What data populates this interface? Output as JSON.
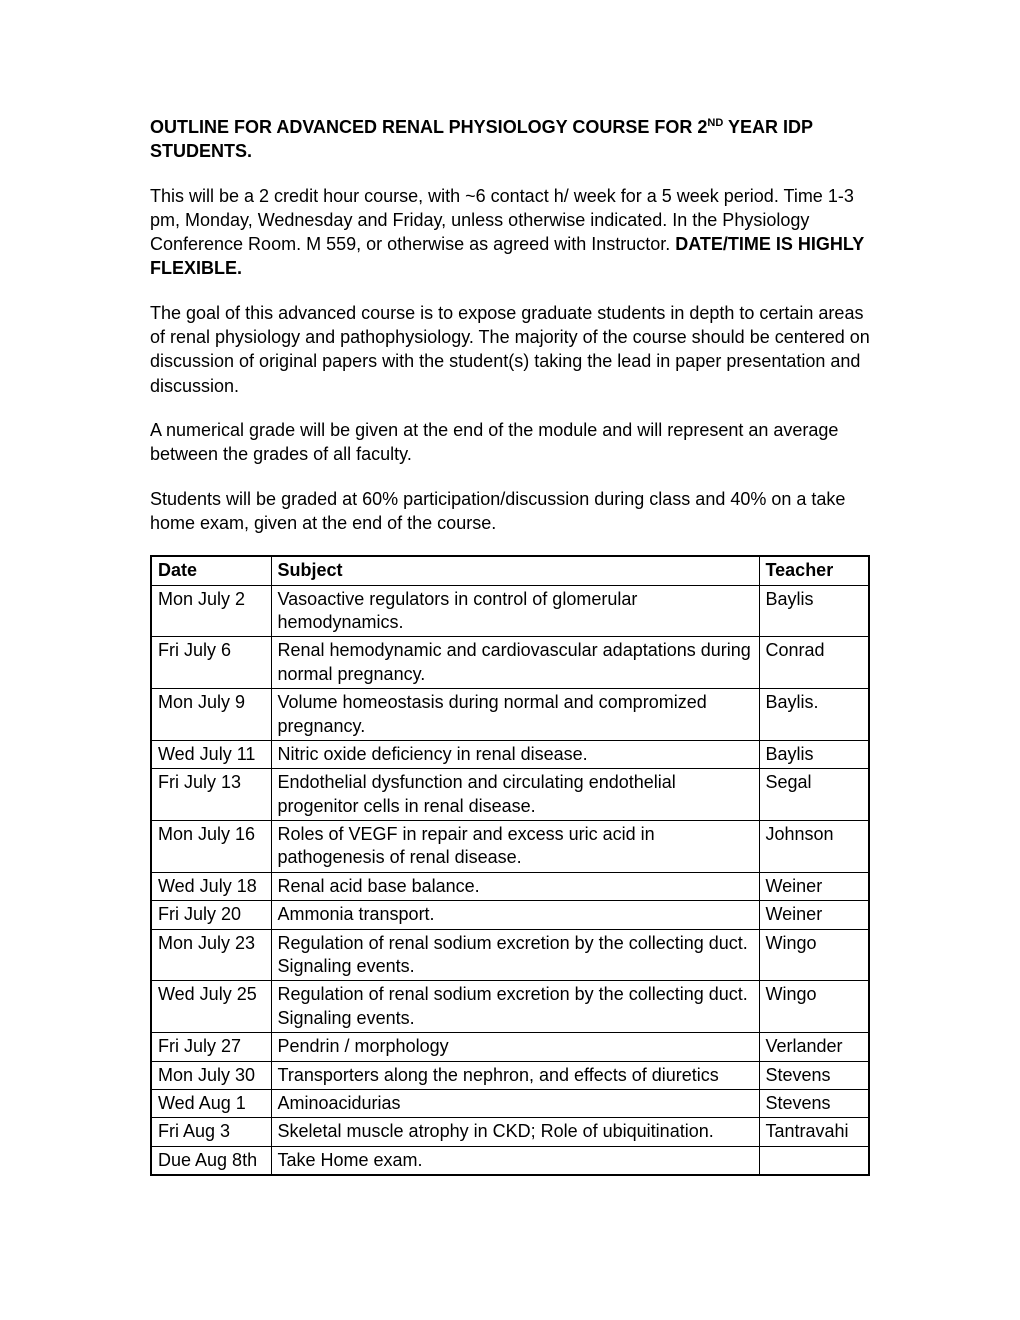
{
  "title": {
    "pre": "OUTLINE FOR ADVANCED RENAL PHYSIOLOGY COURSE FOR 2",
    "sup": "ND",
    "post": " YEAR IDP STUDENTS."
  },
  "para1": {
    "plain": "This will be a 2 credit hour course, with ~6 contact h/ week for a 5 week period. Time 1-3 pm, Monday, Wednesday and Friday, unless otherwise indicated.  In the Physiology Conference Room.  M 559, or otherwise as agreed with Instructor.  ",
    "bold": "DATE/TIME IS HIGHLY FLEXIBLE."
  },
  "para2": "The goal of this advanced course is to expose graduate students in depth to certain areas of renal physiology and pathophysiology.  The majority of the course should be centered on discussion of original papers with the student(s) taking the lead in paper presentation and discussion.",
  "para3": "A numerical grade will be given at the end of the module and will represent an average between the grades of all faculty.",
  "para4": "Students will be graded at 60% participation/discussion during class and 40% on a take home exam, given at the end of the course.",
  "table": {
    "headers": {
      "date": "Date",
      "subject": "Subject",
      "teacher": "Teacher"
    },
    "rows": [
      {
        "date": "Mon July 2",
        "subject": "Vasoactive regulators in control of glomerular hemodynamics.",
        "teacher": "Baylis"
      },
      {
        "date": "Fri July 6",
        "subject": "Renal hemodynamic and cardiovascular adaptations during normal pregnancy.",
        "teacher": "Conrad"
      },
      {
        "date": "Mon July 9",
        "subject": "Volume homeostasis during normal and compromized pregnancy.",
        "teacher": "Baylis."
      },
      {
        "date": "Wed July 11",
        "subject": "Nitric oxide deficiency in renal disease.",
        "teacher": "Baylis"
      },
      {
        "date": "Fri July 13",
        "subject": "Endothelial dysfunction and circulating endothelial progenitor cells in renal disease.",
        "teacher": "Segal"
      },
      {
        "date": "Mon July 16",
        "subject": "Roles of VEGF in repair and excess uric acid in pathogenesis of renal disease.",
        "teacher": "Johnson"
      },
      {
        "date": "Wed July 18",
        "subject": "Renal acid base balance.",
        "teacher": "Weiner"
      },
      {
        "date": "Fri July 20",
        "subject": "Ammonia transport.",
        "teacher": "Weiner"
      },
      {
        "date": "Mon July 23",
        "subject": "Regulation of renal sodium excretion by the collecting duct. Signaling events.",
        "teacher": "Wingo"
      },
      {
        "date": "Wed July 25",
        "subject": "Regulation of renal sodium excretion by the collecting duct. Signaling events.",
        "teacher": "Wingo"
      },
      {
        "date": "Fri July 27",
        "subject": "Pendrin / morphology",
        "teacher": "Verlander"
      },
      {
        "date": "Mon July 30",
        "subject": "Transporters along the nephron, and effects of diuretics",
        "teacher": "Stevens"
      },
      {
        "date": "Wed Aug 1",
        "subject": "Aminoacidurias",
        "teacher": "Stevens"
      },
      {
        "date": "Fri Aug 3",
        "subject": "Skeletal muscle atrophy in CKD; Role of ubiquitination.",
        "teacher": "Tantravahi"
      },
      {
        "date": "Due Aug 8th",
        "subject": "Take Home exam.",
        "teacher": ""
      }
    ]
  }
}
